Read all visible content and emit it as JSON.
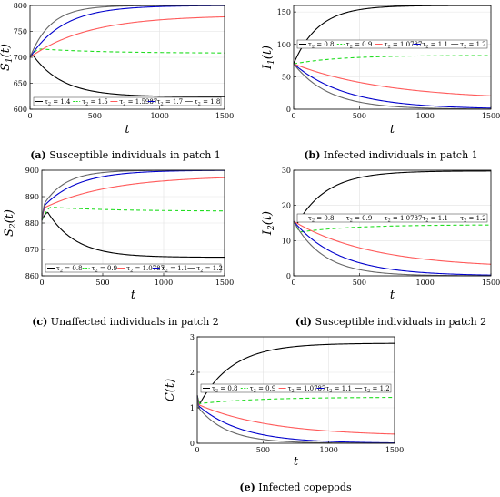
{
  "chart_data": [
    {
      "id": "a",
      "type": "line",
      "ylabel": "S_1(t)",
      "xlabel": "t",
      "xlim": [
        0,
        1500
      ],
      "ylim": [
        600,
        800
      ],
      "xticks": [
        0,
        500,
        1000,
        1500
      ],
      "yticks": [
        600,
        650,
        700,
        750,
        800
      ],
      "legend_position": "bottom",
      "grid": true,
      "caption_tag": "(a)",
      "caption": " Susceptible individuals in patch 1",
      "series": [
        {
          "name": "τ2 = 1.4",
          "color": "#000000",
          "dash": "",
          "y0": 700,
          "peak": 707,
          "peak_t": 15,
          "yend": 624,
          "tau": 230
        },
        {
          "name": "τ2 = 1.5",
          "color": "#22dd22",
          "dash": "4,3",
          "y0": 700,
          "peak": 716,
          "peak_t": 80,
          "yend": 708,
          "tau": 500
        },
        {
          "name": "τ2 = 1.5987",
          "color": "#ff5a5a",
          "dash": "",
          "y0": 700,
          "yend": 781,
          "tau": 450
        },
        {
          "name": "τ2 = 1.7",
          "color": "#0000cc",
          "dash": "",
          "y0": 700,
          "yend": 800,
          "tau": 260
        },
        {
          "name": "τ2 = 1.8",
          "color": "#666666",
          "dash": "",
          "y0": 700,
          "yend": 800,
          "tau": 160
        }
      ]
    },
    {
      "id": "b",
      "type": "line",
      "ylabel": "I_1(t)",
      "xlabel": "t",
      "xlim": [
        0,
        1500
      ],
      "ylim": [
        0,
        160
      ],
      "xticks": [
        0,
        500,
        1000,
        1500
      ],
      "yticks": [
        0,
        50,
        100,
        150
      ],
      "legend_position": "top",
      "grid": true,
      "caption_tag": "(b)",
      "caption": " Infected individuals in patch 1",
      "series": [
        {
          "name": "τ2 = 0.8",
          "color": "#000000",
          "dash": "",
          "y0": 70,
          "yend": 160,
          "tau": 190
        },
        {
          "name": "τ2 = 0.9",
          "color": "#22dd22",
          "dash": "4,3",
          "y0": 70,
          "yend": 83,
          "tau": 350
        },
        {
          "name": "τ2 = 1.0787",
          "color": "#ff5a5a",
          "dash": "",
          "y0": 70,
          "yend": 14,
          "tau": 700
        },
        {
          "name": "τ2 = 1.1",
          "color": "#0000cc",
          "dash": "",
          "y0": 70,
          "yend": 0,
          "tau": 400
        },
        {
          "name": "τ2 = 1.2",
          "color": "#666666",
          "dash": "",
          "y0": 70,
          "yend": 0,
          "tau": 270
        }
      ]
    },
    {
      "id": "c",
      "type": "line",
      "ylabel": "S_2(t)",
      "xlabel": "t",
      "xlim": [
        0,
        1500
      ],
      "ylim": [
        860,
        900
      ],
      "xticks": [
        0,
        500,
        1000,
        1500
      ],
      "yticks": [
        860,
        870,
        880,
        890,
        900
      ],
      "legend_position": "bottom",
      "grid": true,
      "caption_tag": "(c)",
      "caption": " Unaffected individuals in patch 2",
      "series": [
        {
          "name": "τ2 = 0.8",
          "color": "#000000",
          "dash": "",
          "y0": 881,
          "peak": 884,
          "peak_t": 50,
          "yend": 867,
          "tau": 230
        },
        {
          "name": "τ2 = 0.9",
          "color": "#22dd22",
          "dash": "4,3",
          "y0": 881,
          "peak": 886,
          "peak_t": 80,
          "yend": 884.5,
          "tau": 500
        },
        {
          "name": "τ2 = 1.0787",
          "color": "#ff5a5a",
          "dash": "",
          "y0": 881,
          "peak": 886,
          "peak_t": 30,
          "yend": 898,
          "tau": 550
        },
        {
          "name": "τ2 = 1.1",
          "color": "#0000cc",
          "dash": "",
          "y0": 881,
          "peak": 887,
          "peak_t": 30,
          "yend": 900,
          "tau": 280
        },
        {
          "name": "τ2 = 1.2",
          "color": "#666666",
          "dash": "",
          "y0": 881,
          "peak": 888,
          "peak_t": 30,
          "yend": 900,
          "tau": 180
        }
      ]
    },
    {
      "id": "d",
      "type": "line",
      "ylabel": "I_2(t)",
      "xlabel": "t",
      "xlim": [
        0,
        1500
      ],
      "ylim": [
        0,
        30
      ],
      "xticks": [
        0,
        500,
        1000,
        1500
      ],
      "yticks": [
        0,
        10,
        20,
        30
      ],
      "legend_position": "top",
      "grid": true,
      "caption_tag": "(d)",
      "caption": " Susceptible individuals in patch 2",
      "series": [
        {
          "name": "τ2 = 0.8",
          "color": "#000000",
          "dash": "",
          "y0": 15.5,
          "dip": 15,
          "dip_t": 30,
          "yend": 29.8,
          "tau": 230
        },
        {
          "name": "τ2 = 0.9",
          "color": "#22dd22",
          "dash": "4,3",
          "y0": 15.5,
          "dip": 12.5,
          "dip_t": 60,
          "yend": 14.5,
          "tau": 400
        },
        {
          "name": "τ2 = 1.0787",
          "color": "#ff5a5a",
          "dash": "",
          "y0": 15.5,
          "yend": 2.2,
          "tau": 600
        },
        {
          "name": "τ2 = 1.1",
          "color": "#0000cc",
          "dash": "",
          "y0": 15.5,
          "yend": 0,
          "tau": 350
        },
        {
          "name": "τ2 = 1.2",
          "color": "#666666",
          "dash": "",
          "y0": 15.5,
          "yend": 0,
          "tau": 230
        }
      ]
    },
    {
      "id": "e",
      "type": "line",
      "ylabel": "C(t)",
      "xlabel": "t",
      "xlim": [
        0,
        1500
      ],
      "ylim": [
        0,
        3
      ],
      "xticks": [
        0,
        500,
        1000,
        1500
      ],
      "yticks": [
        0,
        1,
        2,
        3
      ],
      "legend_position": "top",
      "grid": true,
      "caption_tag": "(e)",
      "caption": " Infected copepods",
      "series": [
        {
          "name": "τ2 = 0.8",
          "color": "#000000",
          "dash": "",
          "y0": 1.35,
          "dip": 1.12,
          "dip_t": 20,
          "yend": 2.82,
          "tau": 250
        },
        {
          "name": "τ2 = 0.9",
          "color": "#22dd22",
          "dash": "4,3",
          "y0": 1.35,
          "dip": 1.12,
          "dip_t": 20,
          "yend": 1.3,
          "tau": 450
        },
        {
          "name": "τ2 = 1.0787",
          "color": "#ff5a5a",
          "dash": "",
          "y0": 1.35,
          "dip": 1.08,
          "dip_t": 15,
          "yend": 0.2,
          "tau": 550
        },
        {
          "name": "τ2 = 1.1",
          "color": "#0000cc",
          "dash": "",
          "y0": 1.35,
          "dip": 1.05,
          "dip_t": 12,
          "yend": 0,
          "tau": 330
        },
        {
          "name": "τ2 = 1.2",
          "color": "#666666",
          "dash": "",
          "y0": 1.35,
          "dip": 1.0,
          "dip_t": 10,
          "yend": 0,
          "tau": 220
        }
      ]
    }
  ]
}
